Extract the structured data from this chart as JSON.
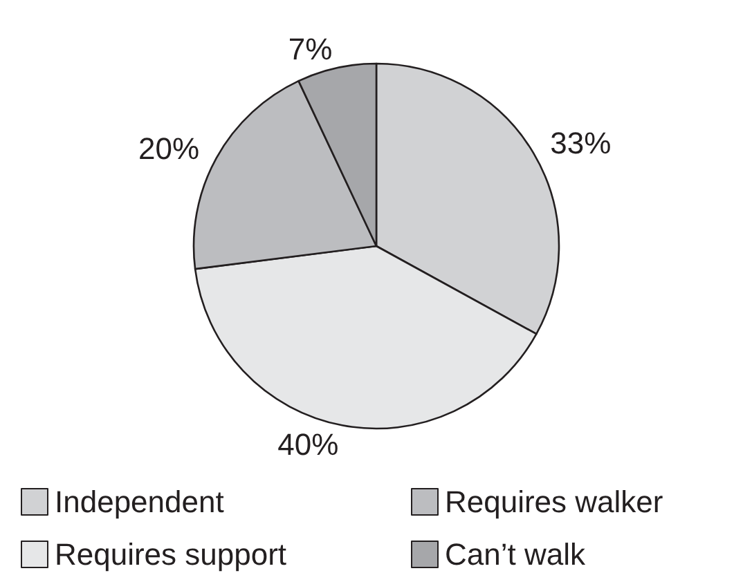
{
  "chart_data": {
    "type": "pie",
    "categories": [
      "Independent",
      "Requires support",
      "Requires walker",
      "Can’t walk"
    ],
    "values": [
      33,
      40,
      20,
      7
    ],
    "colors": [
      "#d1d2d4",
      "#e6e7e8",
      "#bcbdc0",
      "#a6a7aa"
    ],
    "value_labels": [
      "33%",
      "40%",
      "20%",
      "7%"
    ],
    "legend": "bottom"
  }
}
